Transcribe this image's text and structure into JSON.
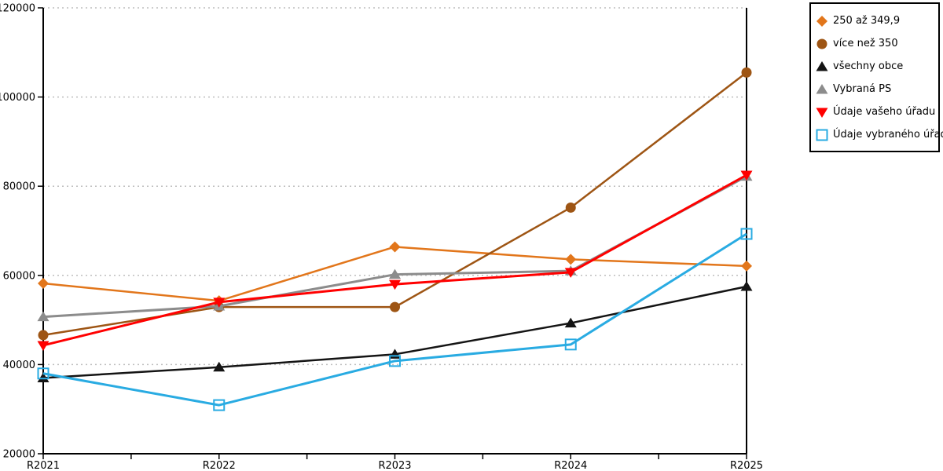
{
  "chart_data": {
    "type": "line",
    "title": "",
    "xlabel": "",
    "ylabel": "",
    "categories": [
      "R2021",
      "R2022",
      "R2023",
      "R2024",
      "R2025"
    ],
    "series": [
      {
        "name": "250 až 349,9",
        "color": "#E2761B",
        "marker": "diamond",
        "values": [
          58200,
          54300,
          66400,
          63600,
          62100
        ]
      },
      {
        "name": "více než 350",
        "color": "#9E5514",
        "marker": "circle",
        "values": [
          46600,
          52900,
          52900,
          75200,
          105500
        ]
      },
      {
        "name": "všechny obce",
        "color": "#141414",
        "marker": "triangle-up",
        "values": [
          37000,
          39400,
          42300,
          49300,
          57500
        ]
      },
      {
        "name": "Vybraná PS",
        "color": "#8C8C8C",
        "marker": "triangle-up",
        "values": [
          50700,
          53100,
          60200,
          61000,
          82200
        ]
      },
      {
        "name": "Údaje vašeho úřadu",
        "color": "#FF0000",
        "marker": "triangle-down",
        "values": [
          44300,
          54000,
          58000,
          60700,
          82500
        ]
      },
      {
        "name": "Údaje vybraného úřadu",
        "color": "#29ABE2",
        "marker": "square-open",
        "values": [
          38000,
          30900,
          40800,
          44500,
          69300
        ]
      }
    ],
    "ylim": [
      20000,
      120000
    ],
    "ytick_step": 20000,
    "ytick_labels": [
      "20000",
      "40000",
      "60000",
      "80000",
      "100000",
      "120000"
    ],
    "grid": "dotted-horizontal",
    "grid_color": "#BEBEBE",
    "axis_color": "#000000",
    "legend_position": "outside-top-right"
  }
}
